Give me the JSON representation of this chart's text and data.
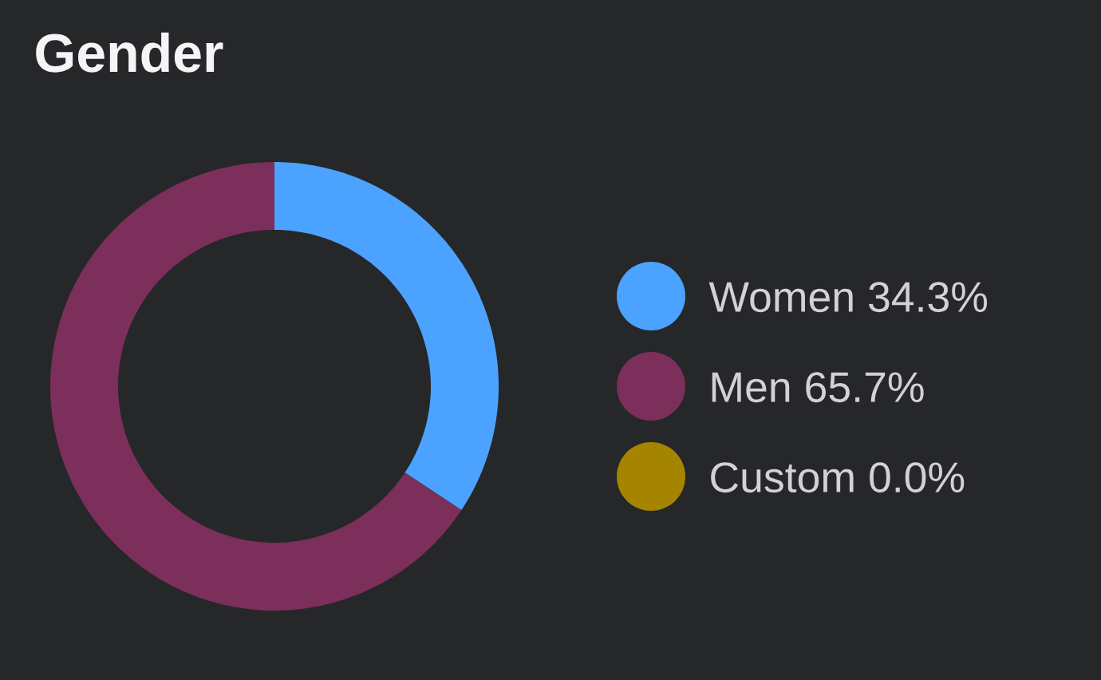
{
  "chart_data": {
    "type": "donut",
    "title": "Gender",
    "categories": [
      "Women",
      "Men",
      "Custom"
    ],
    "values": [
      34.3,
      65.7,
      0.0
    ],
    "value_labels": [
      "34.3%",
      "65.7%",
      "0.0%"
    ],
    "colors": [
      "#4ba3ff",
      "#7b2f5a",
      "#a58500"
    ],
    "legend": "right"
  }
}
